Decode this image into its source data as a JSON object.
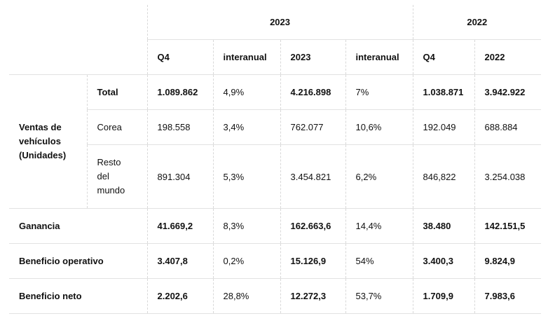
{
  "header": {
    "year_2023": "2023",
    "year_2022": "2022",
    "cols": [
      "Q4",
      "interanual",
      "2023",
      "interanual",
      "Q4",
      "2022"
    ]
  },
  "ventas": {
    "label_lines": [
      "Ventas de",
      "vehículos",
      "(Unidades)"
    ],
    "rows": [
      {
        "sub": [
          "Total"
        ],
        "vals": [
          "1.089.862",
          "4,9%",
          "4.216.898",
          "7%",
          "1.038.871",
          "3.942.922"
        ]
      },
      {
        "sub": [
          "Corea"
        ],
        "vals": [
          "198.558",
          "3,4%",
          "762.077",
          "10,6%",
          "192.049",
          "688.884"
        ]
      },
      {
        "sub": [
          "Resto",
          "del",
          "mundo"
        ],
        "vals": [
          "891.304",
          "5,3%",
          "3.454.821",
          "6,2%",
          "846,822",
          "3.254.038"
        ]
      }
    ]
  },
  "rows": [
    {
      "label": "Ganancia",
      "vals": [
        "41.669,2",
        "8,3%",
        "162.663,6",
        "14,4%",
        "38.480",
        "142.151,5"
      ]
    },
    {
      "label": "Beneficio operativo",
      "vals": [
        "3.407,8",
        "0,2%",
        "15.126,9",
        "54%",
        "3.400,3",
        "9.824,9"
      ]
    },
    {
      "label": "Beneficio neto",
      "vals": [
        "2.202,6",
        "28,8%",
        "12.272,3",
        "53,7%",
        "1.709,9",
        "7.983,6"
      ]
    }
  ]
}
